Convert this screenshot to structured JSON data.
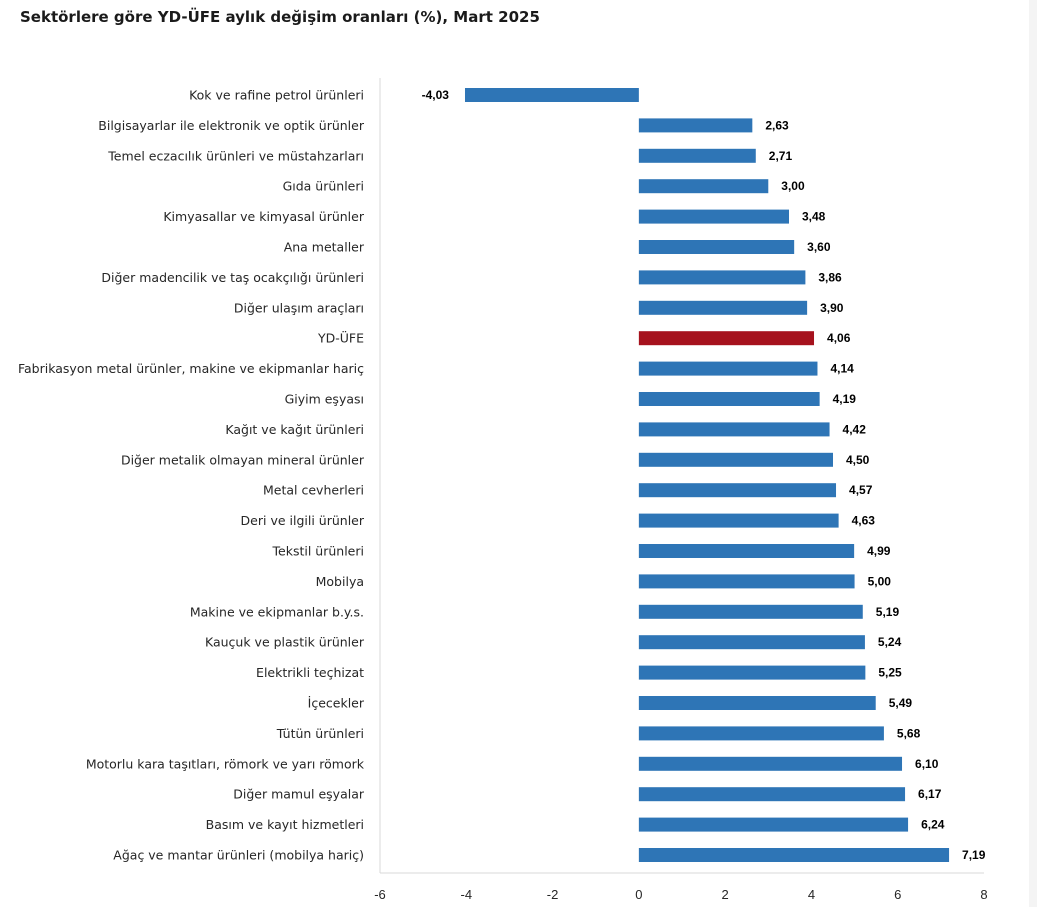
{
  "title": "Sektörlere göre YD-ÜFE aylık değişim oranları (%), Mart 2025",
  "colors": {
    "bar": "#2e75b6",
    "highlight": "#a6121d",
    "axis": "#d9d9d9"
  },
  "chart_data": {
    "type": "bar",
    "orientation": "horizontal",
    "title": "Sektörlere göre YD-ÜFE aylık değişim oranları (%), Mart 2025",
    "xlabel": "",
    "ylabel": "",
    "xlim": [
      -6,
      8
    ],
    "xticks": [
      -6,
      -4,
      -2,
      0,
      2,
      4,
      6,
      8
    ],
    "grid": false,
    "highlight_category": "YD-ÜFE",
    "categories": [
      "Kok ve rafine petrol ürünleri",
      "Bilgisayarlar ile elektronik ve optik ürünler",
      "Temel eczacılık ürünleri ve müstahzarları",
      "Gıda ürünleri",
      "Kimyasallar ve kimyasal ürünler",
      "Ana metaller",
      "Diğer madencilik ve taş ocakçılığı ürünleri",
      "Diğer ulaşım araçları",
      "YD-ÜFE",
      "Fabrikasyon metal ürünler, makine ve ekipmanlar hariç",
      "Giyim eşyası",
      "Kağıt ve kağıt ürünleri",
      "Diğer metalik olmayan mineral ürünler",
      "Metal cevherleri",
      "Deri ve ilgili ürünler",
      "Tekstil ürünleri",
      "Mobilya",
      "Makine ve ekipmanlar b.y.s.",
      "Kauçuk ve plastik ürünler",
      "Elektrikli teçhizat",
      "İçecekler",
      "Tütün ürünleri",
      "Motorlu kara taşıtları, römork ve yarı römork",
      "Diğer mamul eşyalar",
      "Basım ve kayıt hizmetleri",
      "Ağaç ve mantar ürünleri (mobilya hariç)"
    ],
    "values": [
      -4.03,
      2.63,
      2.71,
      3.0,
      3.48,
      3.6,
      3.86,
      3.9,
      4.06,
      4.14,
      4.19,
      4.42,
      4.5,
      4.57,
      4.63,
      4.99,
      5.0,
      5.19,
      5.24,
      5.25,
      5.49,
      5.68,
      6.1,
      6.17,
      6.24,
      7.19
    ],
    "value_labels": [
      "-4,03",
      "2,63",
      "2,71",
      "3,00",
      "3,48",
      "3,60",
      "3,86",
      "3,90",
      "4,06",
      "4,14",
      "4,19",
      "4,42",
      "4,50",
      "4,57",
      "4,63",
      "4,99",
      "5,00",
      "5,19",
      "5,24",
      "5,25",
      "5,49",
      "5,68",
      "6,10",
      "6,17",
      "6,24",
      "7,19"
    ]
  }
}
